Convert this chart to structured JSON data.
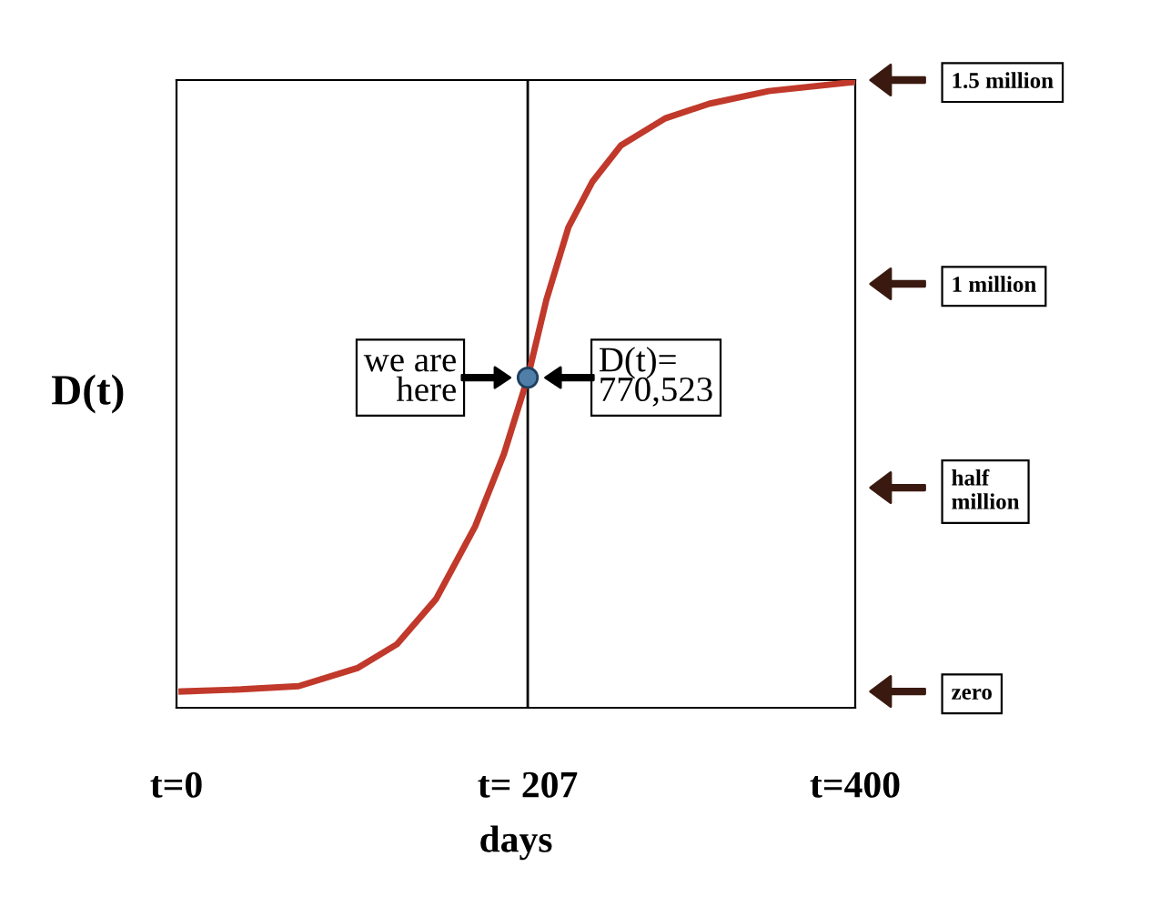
{
  "chart_data": {
    "type": "line",
    "xlabel": "days",
    "ylabel": "D(t)",
    "xlim": [
      0,
      400
    ],
    "xticks": [
      {
        "value": 0,
        "label": "t=0"
      },
      {
        "value": 207,
        "label": "t= 207"
      },
      {
        "value": 400,
        "label": "t=400"
      }
    ],
    "ylim": [
      -40000,
      1500000
    ],
    "yticks": [
      {
        "value": 0,
        "label": "zero"
      },
      {
        "value": 500000,
        "label": "half\nmillion"
      },
      {
        "value": 1000000,
        "label": "1 million"
      },
      {
        "value": 1500000,
        "label": "1.5 million"
      }
    ],
    "grid": false,
    "marker": "none",
    "line_style": "solid",
    "series": [
      {
        "color": "#c0392b",
        "x": [
          3,
          38,
          72,
          107,
          130,
          153,
          176,
          193,
          207,
          218,
          231,
          245,
          262,
          288,
          314,
          349,
          399
        ],
        "values": [
          0,
          5000,
          13000,
          58000,
          116000,
          227000,
          405000,
          583000,
          770000,
          961000,
          1139000,
          1250000,
          1340000,
          1406000,
          1442000,
          1473000,
          1495000
        ]
      },
      {
        "type": "scatter",
        "color": "#4f7fa8",
        "x": [
          207
        ],
        "values": [
          770000
        ],
        "marker": "circle"
      }
    ],
    "ref_lines": [
      {
        "axis": "x",
        "value": 207,
        "color": "#000000",
        "line_style": "solid"
      }
    ],
    "annotations": [
      "we are\nhere",
      "D(t)=\n770,523"
    ]
  }
}
